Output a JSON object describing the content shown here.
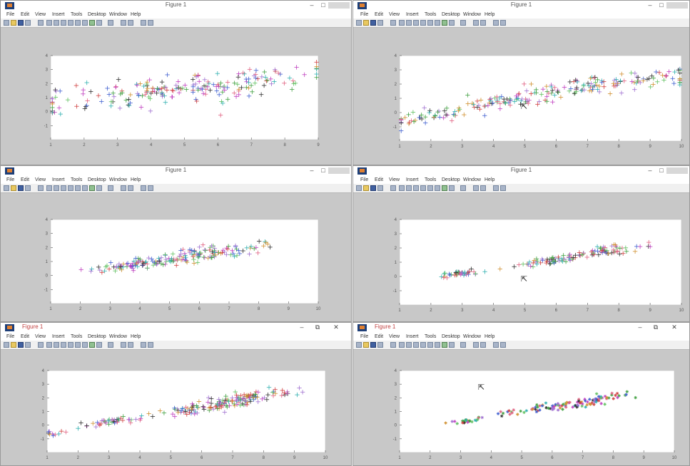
{
  "windows": [
    {
      "id": "w1",
      "title": "Figure 1",
      "show_close_glyph": false,
      "title_left": false,
      "chart_data": {
        "type": "scatter",
        "marker": "+",
        "xlim": [
          1,
          9
        ],
        "ylim": [
          -2,
          4
        ],
        "xticks": [
          1,
          2,
          3,
          4,
          5,
          6,
          7,
          8,
          9
        ],
        "yticks": [
          -1,
          0,
          1,
          2,
          3,
          4
        ],
        "clusters": [
          {
            "cx": 3.5,
            "cy": 1.2,
            "sx": 2.0,
            "sy": 1.0,
            "n": 90
          },
          {
            "cx": 6.0,
            "cy": 1.8,
            "sx": 1.8,
            "sy": 0.9,
            "n": 90
          },
          {
            "cx": 4.8,
            "cy": 1.6,
            "sx": 0.6,
            "sy": 0.3,
            "n": 30
          }
        ]
      }
    },
    {
      "id": "w2",
      "title": "Figure 1",
      "show_close_glyph": false,
      "title_left": false,
      "chart_data": {
        "type": "scatter",
        "marker": "+",
        "xlim": [
          1,
          10
        ],
        "ylim": [
          -2,
          4
        ],
        "xticks": [
          1,
          2,
          3,
          4,
          5,
          6,
          7,
          8,
          9,
          10
        ],
        "yticks": [
          -1,
          0,
          1,
          2,
          3,
          4
        ],
        "clusters": [
          {
            "cx": 2.0,
            "cy": -0.2,
            "sx": 0.8,
            "sy": 0.4,
            "n": 45
          },
          {
            "cx": 4.5,
            "cy": 0.8,
            "sx": 0.9,
            "sy": 0.45,
            "n": 70
          },
          {
            "cx": 7.5,
            "cy": 2.0,
            "sx": 1.5,
            "sy": 0.55,
            "n": 110
          }
        ]
      }
    },
    {
      "id": "w3",
      "title": "Figure 1",
      "show_close_glyph": false,
      "title_left": false,
      "chart_data": {
        "type": "scatter",
        "marker": "+",
        "xlim": [
          1,
          10
        ],
        "ylim": [
          -2,
          4
        ],
        "xticks": [
          1,
          2,
          3,
          4,
          5,
          6,
          7,
          8,
          9,
          10
        ],
        "yticks": [
          -1,
          0,
          1,
          2,
          3,
          4
        ],
        "clusters": [
          {
            "cx": 4.0,
            "cy": 0.8,
            "sx": 0.9,
            "sy": 0.35,
            "n": 90
          },
          {
            "cx": 6.3,
            "cy": 1.6,
            "sx": 1.0,
            "sy": 0.4,
            "n": 100
          }
        ]
      }
    },
    {
      "id": "w4",
      "title": "Figure 1",
      "show_close_glyph": false,
      "title_left": false,
      "chart_data": {
        "type": "scatter",
        "marker": "+",
        "xlim": [
          1,
          10
        ],
        "ylim": [
          -2,
          4
        ],
        "xticks": [
          1,
          2,
          3,
          4,
          5,
          6,
          7,
          8,
          9,
          10
        ],
        "yticks": [
          -1,
          0,
          1,
          2,
          3,
          4
        ],
        "clusters": [
          {
            "cx": 3.0,
            "cy": 0.2,
            "sx": 0.35,
            "sy": 0.15,
            "n": 40
          },
          {
            "cx": 5.8,
            "cy": 1.1,
            "sx": 0.6,
            "sy": 0.2,
            "n": 60
          },
          {
            "cx": 7.6,
            "cy": 1.8,
            "sx": 0.6,
            "sy": 0.25,
            "n": 60
          }
        ]
      }
    },
    {
      "id": "w5",
      "title": "Figure 1",
      "show_close_glyph": true,
      "title_left": true,
      "chart_data": {
        "type": "scatter",
        "marker": "+",
        "xlim": [
          1,
          10
        ],
        "ylim": [
          -2,
          4
        ],
        "xticks": [
          1,
          2,
          3,
          4,
          5,
          6,
          7,
          8,
          9,
          10
        ],
        "yticks": [
          -1,
          0,
          1,
          2,
          3,
          4
        ],
        "clusters": [
          {
            "cx": 1.3,
            "cy": -0.6,
            "sx": 0.3,
            "sy": 0.3,
            "n": 10
          },
          {
            "cx": 3.2,
            "cy": 0.3,
            "sx": 0.5,
            "sy": 0.2,
            "n": 45
          },
          {
            "cx": 6.2,
            "cy": 1.3,
            "sx": 0.9,
            "sy": 0.3,
            "n": 80
          },
          {
            "cx": 7.4,
            "cy": 2.0,
            "sx": 0.8,
            "sy": 0.3,
            "n": 80
          }
        ]
      }
    },
    {
      "id": "w6",
      "title": "Figure 1",
      "show_close_glyph": true,
      "title_left": true,
      "chart_data": {
        "type": "scatter",
        "marker": "*",
        "xlim": [
          1,
          10
        ],
        "ylim": [
          -2,
          4
        ],
        "xticks": [
          1,
          2,
          3,
          4,
          5,
          6,
          7,
          8,
          9,
          10
        ],
        "yticks": [
          -1,
          0,
          1,
          2,
          3,
          4
        ],
        "clusters": [
          {
            "cx": 3.2,
            "cy": 0.3,
            "sx": 0.25,
            "sy": 0.12,
            "n": 25
          },
          {
            "cx": 6.0,
            "cy": 1.3,
            "sx": 0.9,
            "sy": 0.25,
            "n": 70
          },
          {
            "cx": 7.6,
            "cy": 2.0,
            "sx": 0.5,
            "sy": 0.2,
            "n": 40
          }
        ]
      }
    }
  ],
  "menu": [
    "File",
    "Edit",
    "View",
    "Insert",
    "Tools",
    "Desktop",
    "Window",
    "Help"
  ],
  "window_controls": {
    "minimize": "–",
    "maximize": "□",
    "close": "✕",
    "restore_glyph": "⧉"
  },
  "cursor_glyph": "⇱",
  "palette": [
    "#d04040",
    "#40a040",
    "#4060d0",
    "#c040c0",
    "#30b0b0",
    "#d09030",
    "#303030",
    "#a070d0",
    "#60c060",
    "#e06080"
  ]
}
